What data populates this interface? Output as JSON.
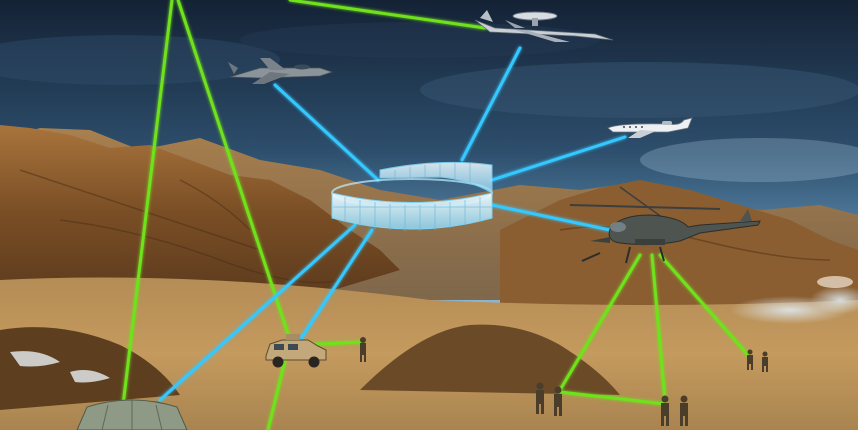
{
  "scene": {
    "description_visible_text": [],
    "elements": {
      "sky": "sky",
      "mountains": "mountains",
      "ground": "desert-ground",
      "hub": "communications-hub-ring",
      "aircraft": [
        "awacs-plane",
        "fighter-jet",
        "business-jet",
        "attack-helicopter"
      ],
      "ground_units": [
        "humvee",
        "tent",
        "soldier-group-right",
        "soldier-group-center",
        "soldier-near-humvee"
      ]
    },
    "colors": {
      "sky_top": "#1b2a3d",
      "sky_mid": "#3e6a8e",
      "sky_glow": "#9fc9e6",
      "mountain_dark": "#5b3a1d",
      "mountain_light": "#b9874a",
      "ground": "#c49a5e",
      "link_blue": "#35c8ff",
      "link_green": "#6fe21e",
      "hub_fill": "#d8f2ff"
    }
  }
}
